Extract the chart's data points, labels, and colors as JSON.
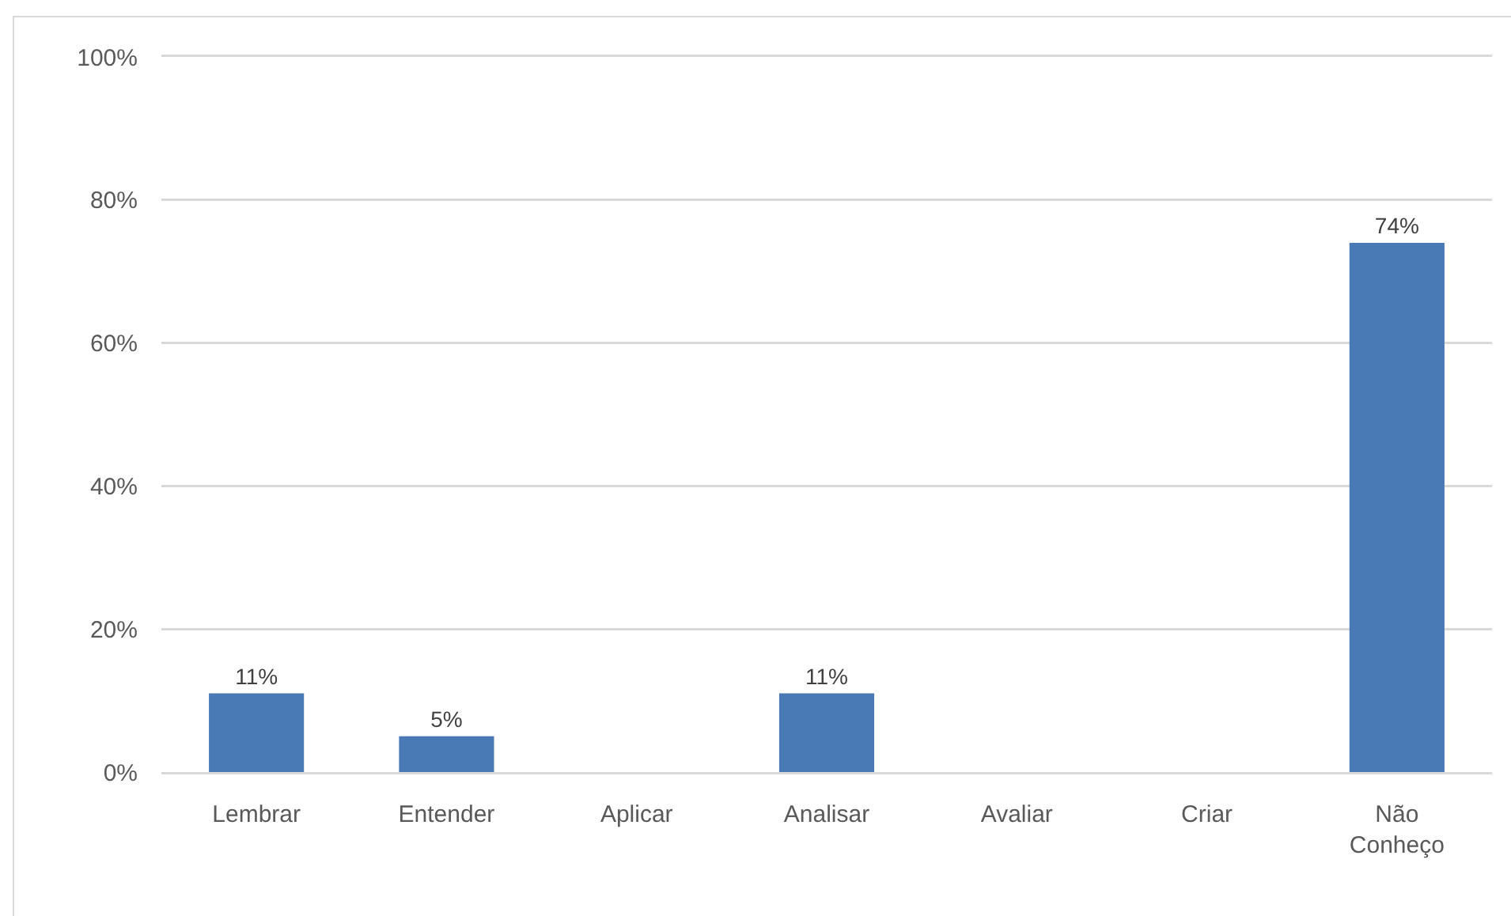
{
  "chart_data": {
    "type": "bar",
    "categories": [
      "Lembrar",
      "Entender",
      "Aplicar",
      "Analisar",
      "Avaliar",
      "Criar",
      "Não Conheço"
    ],
    "values": [
      11,
      5,
      0,
      11,
      0,
      0,
      74
    ],
    "value_labels": [
      "11%",
      "5%",
      null,
      "11%",
      null,
      null,
      "74%"
    ],
    "color": "#4a7ab6",
    "ylim": [
      0,
      100
    ],
    "yticks": [
      {
        "value": 0,
        "label": "0%"
      },
      {
        "value": 20,
        "label": "20%"
      },
      {
        "value": 40,
        "label": "40%"
      },
      {
        "value": 60,
        "label": "60%"
      },
      {
        "value": 80,
        "label": "80%"
      },
      {
        "value": 100,
        "label": "100%"
      }
    ],
    "grid": "y"
  }
}
